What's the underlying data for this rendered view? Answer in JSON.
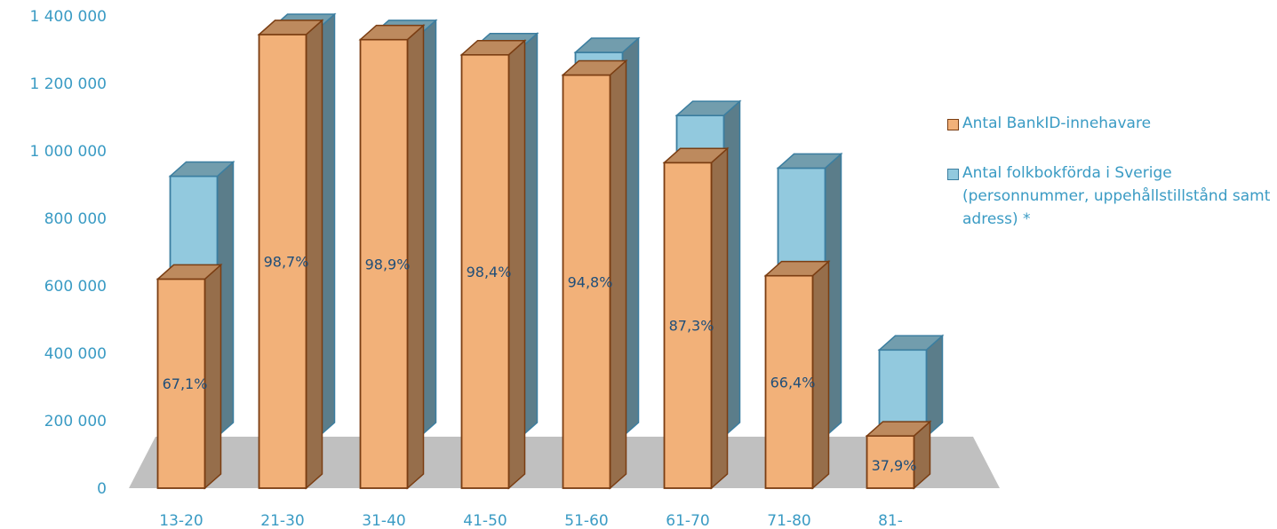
{
  "chart_data": {
    "type": "bar",
    "categories": [
      "13-20",
      "21-30",
      "31-40",
      "41-50",
      "51-60",
      "61-70",
      "71-80",
      "81-"
    ],
    "series": [
      {
        "name": "Antal BankID-innehavare",
        "values": [
          620000,
          1345000,
          1330000,
          1285000,
          1225000,
          965000,
          630000,
          155000
        ],
        "color": "#f2b179",
        "edge": "#7a3d12"
      },
      {
        "name": "Antal folkbokförda i Sverige (personnummer, uppehållstillstånd samt adress) *",
        "values": [
          925000,
          1363000,
          1345000,
          1306000,
          1292000,
          1105000,
          949000,
          410000
        ],
        "color": "#92c9de",
        "edge": "#3b7ea0"
      }
    ],
    "data_labels": [
      "67,1%",
      "98,7%",
      "98,9%",
      "98,4%",
      "94,8%",
      "87,3%",
      "66,4%",
      "37,9%"
    ],
    "yticks": [
      "0",
      "200 000",
      "400 000",
      "600 000",
      "800 000",
      "1 000 000",
      "1 200 000",
      "1 400 000"
    ],
    "ylim": [
      0,
      1400000
    ],
    "grid": false,
    "legend_position": "right"
  }
}
